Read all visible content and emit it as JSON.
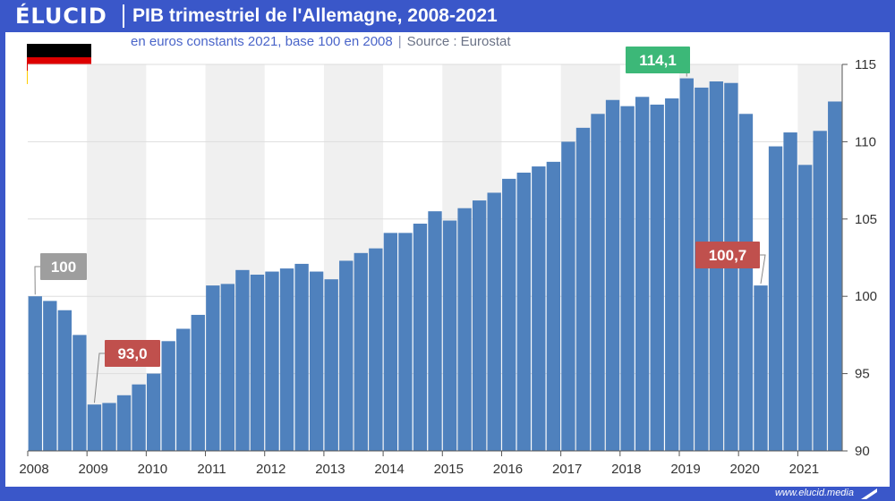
{
  "header": {
    "logo": "ÉLUCID",
    "title": "PIB trimestriel de l'Allemagne, 2008-2021"
  },
  "subtitle": {
    "text": "en euros constants 2021, base 100 en 2008",
    "source": "Source : Eurostat"
  },
  "footer": {
    "url": "www.elucid.media"
  },
  "colors": {
    "bar": "#4f81bd",
    "brand": "#3a57c9",
    "label_grey": "#9e9e9e",
    "label_red": "#c0504d",
    "label_green": "#3cb878",
    "flag": [
      "#000000",
      "#dd0000",
      "#ffce00"
    ]
  },
  "chart_data": {
    "type": "bar",
    "title": "PIB trimestriel de l'Allemagne, 2008-2021",
    "subtitle": "en euros constants 2021, base 100 en 2008",
    "ylim": [
      90,
      115
    ],
    "yticks": [
      90,
      95,
      100,
      105,
      110,
      115
    ],
    "y_axis_position": "right",
    "grid": true,
    "years": [
      "2008",
      "2009",
      "2010",
      "2011",
      "2012",
      "2013",
      "2014",
      "2015",
      "2016",
      "2017",
      "2018",
      "2019",
      "2020",
      "2021"
    ],
    "categories": [
      "2008 T1",
      "2008 T2",
      "2008 T3",
      "2008 T4",
      "2009 T1",
      "2009 T2",
      "2009 T3",
      "2009 T4",
      "2010 T1",
      "2010 T2",
      "2010 T3",
      "2010 T4",
      "2011 T1",
      "2011 T2",
      "2011 T3",
      "2011 T4",
      "2012 T1",
      "2012 T2",
      "2012 T3",
      "2012 T4",
      "2013 T1",
      "2013 T2",
      "2013 T3",
      "2013 T4",
      "2014 T1",
      "2014 T2",
      "2014 T3",
      "2014 T4",
      "2015 T1",
      "2015 T2",
      "2015 T3",
      "2015 T4",
      "2016 T1",
      "2016 T2",
      "2016 T3",
      "2016 T4",
      "2017 T1",
      "2017 T2",
      "2017 T3",
      "2017 T4",
      "2018 T1",
      "2018 T2",
      "2018 T3",
      "2018 T4",
      "2019 T1",
      "2019 T2",
      "2019 T3",
      "2019 T4",
      "2020 T1",
      "2020 T2",
      "2020 T3",
      "2020 T4",
      "2021 T1",
      "2021 T2",
      "2021 T3"
    ],
    "values": [
      100.0,
      99.7,
      99.1,
      97.5,
      93.0,
      93.1,
      93.6,
      94.3,
      95.0,
      97.1,
      97.9,
      98.8,
      100.7,
      100.8,
      101.7,
      101.4,
      101.6,
      101.8,
      102.1,
      101.6,
      101.1,
      102.3,
      102.8,
      103.1,
      104.1,
      104.1,
      104.7,
      105.5,
      104.9,
      105.7,
      106.2,
      106.7,
      107.6,
      108.0,
      108.4,
      108.7,
      110.0,
      110.9,
      111.8,
      112.7,
      112.3,
      112.9,
      112.4,
      112.8,
      114.1,
      113.5,
      113.9,
      113.8,
      111.8,
      100.7,
      109.7,
      110.6,
      108.5,
      110.7,
      112.6
    ],
    "annotations": [
      {
        "index": 0,
        "text": "100",
        "color": "grey"
      },
      {
        "index": 4,
        "text": "93,0",
        "color": "red"
      },
      {
        "index": 44,
        "text": "114,1",
        "color": "green"
      },
      {
        "index": 49,
        "text": "100,7",
        "color": "red"
      }
    ]
  }
}
